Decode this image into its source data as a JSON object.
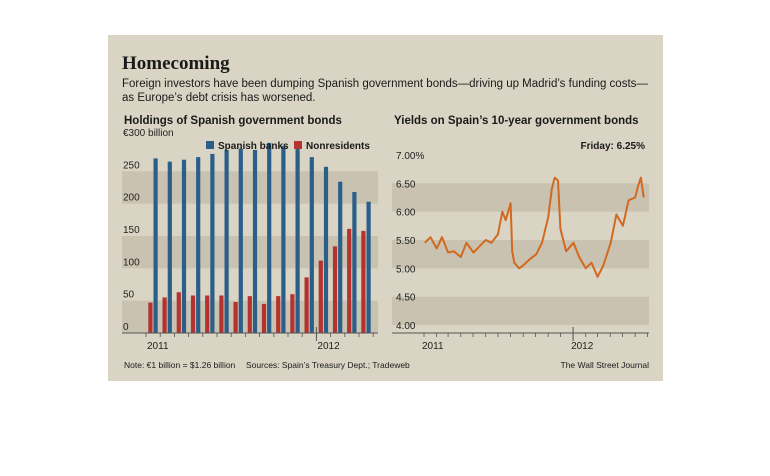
{
  "title": "Homecoming",
  "subtitle": "Foreign investors have been dumping Spanish government bonds—driving up Madrid’s funding costs—as Europe’s debt crisis has worsened.",
  "footnote": "Note: €1 billion = $1.26 billion",
  "sources": "Sources: Spain’s Treasury Dept.; Tradeweb",
  "credit": "The Wall Street Journal",
  "colors": {
    "panel": "#d9d4c4",
    "band": "#c9c2b0",
    "spanish_banks": "#2b5f8a",
    "nonresidents": "#b5332e",
    "yield_line": "#d2691e"
  },
  "chart_data": [
    {
      "type": "bar",
      "title": "Holdings of Spanish government bonds",
      "categories": [
        "Jan 2011",
        "Feb 2011",
        "Mar 2011",
        "Apr 2011",
        "May 2011",
        "Jun 2011",
        "Jul 2011",
        "Aug 2011",
        "Sep 2011",
        "Oct 2011",
        "Nov 2011",
        "Dec 2011",
        "Jan 2012",
        "Feb 2012",
        "Mar 2012",
        "Apr 2012"
      ],
      "series": [
        {
          "name": "Spanish banks",
          "color": "#2b5f8a",
          "values": [
            270,
            265,
            268,
            272,
            277,
            283,
            285,
            283,
            294,
            289,
            293,
            272,
            257,
            234,
            218,
            203
          ]
        },
        {
          "name": "Nonresidents",
          "color": "#b5332e",
          "values": [
            47,
            55,
            63,
            58,
            58,
            58,
            48,
            57,
            45,
            57,
            60,
            86,
            112,
            134,
            161,
            158
          ]
        }
      ],
      "y_ticks": [
        "€300 billion",
        "250",
        "200",
        "150",
        "100",
        "50",
        "0"
      ],
      "y_tick_values": [
        300,
        250,
        200,
        150,
        100,
        50,
        0
      ],
      "ylim": [
        0,
        300
      ],
      "x_tick_labels": [
        "2011",
        "2012"
      ],
      "legend_position": "top-right"
    },
    {
      "type": "line",
      "title": "Yields on Spain’s 10-year government bonds",
      "annotation": "Friday: 6.25%",
      "y_ticks": [
        "7.00%",
        "6.50",
        "6.00",
        "5.50",
        "5.00",
        "4.50",
        "4.00"
      ],
      "y_tick_values": [
        7.0,
        6.5,
        6.0,
        5.5,
        5.0,
        4.5,
        4.0
      ],
      "ylim": [
        4.0,
        7.0
      ],
      "x_tick_labels": [
        "2011",
        "2012"
      ],
      "x": [
        "2011-01-03",
        "2011-01-17",
        "2011-02-01",
        "2011-02-14",
        "2011-03-01",
        "2011-03-15",
        "2011-04-01",
        "2011-04-15",
        "2011-05-02",
        "2011-05-16",
        "2011-06-01",
        "2011-06-15",
        "2011-07-01",
        "2011-07-12",
        "2011-07-20",
        "2011-08-01",
        "2011-08-05",
        "2011-08-10",
        "2011-08-22",
        "2011-09-01",
        "2011-09-15",
        "2011-10-03",
        "2011-10-17",
        "2011-11-01",
        "2011-11-10",
        "2011-11-17",
        "2011-11-25",
        "2011-12-01",
        "2011-12-15",
        "2012-01-02",
        "2012-01-16",
        "2012-02-01",
        "2012-02-15",
        "2012-03-01",
        "2012-03-15",
        "2012-04-02",
        "2012-04-16",
        "2012-05-02",
        "2012-05-16",
        "2012-06-01",
        "2012-06-08",
        "2012-06-15",
        "2012-06-22"
      ],
      "y": [
        5.45,
        5.55,
        5.35,
        5.55,
        5.28,
        5.3,
        5.2,
        5.45,
        5.28,
        5.38,
        5.5,
        5.45,
        5.6,
        6.0,
        5.85,
        6.15,
        5.3,
        5.1,
        5.0,
        5.05,
        5.15,
        5.25,
        5.45,
        5.9,
        6.4,
        6.6,
        6.55,
        5.7,
        5.3,
        5.45,
        5.2,
        5.0,
        5.1,
        4.85,
        5.05,
        5.45,
        5.95,
        5.75,
        6.2,
        6.25,
        6.45,
        6.6,
        6.25
      ]
    }
  ]
}
